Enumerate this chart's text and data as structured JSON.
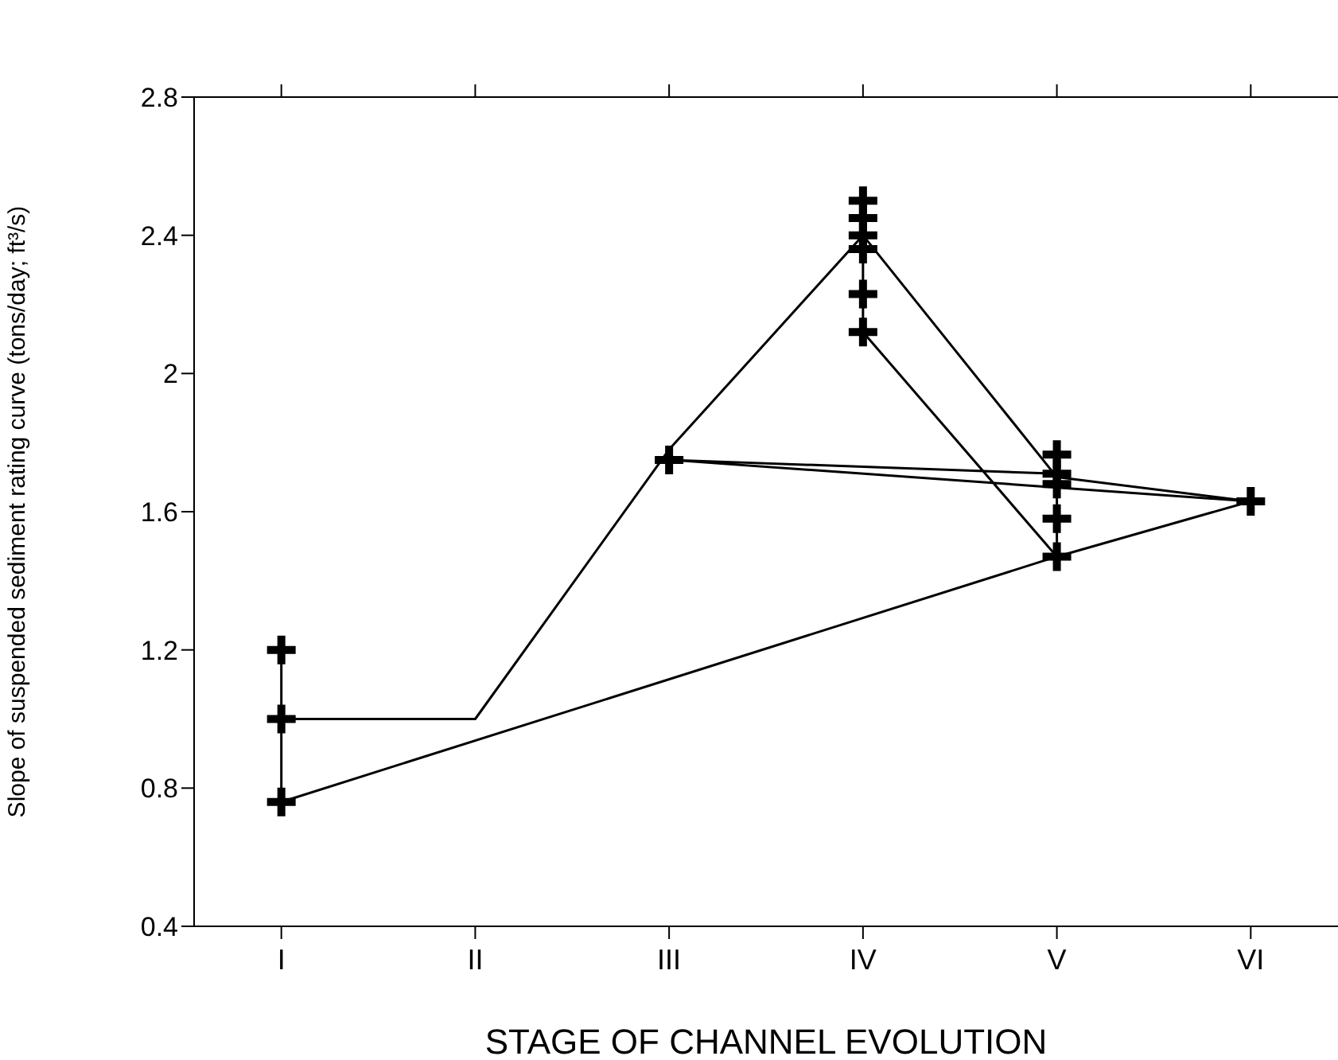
{
  "chart_data": {
    "type": "line",
    "xlabel": "STAGE OF CHANNEL EVOLUTION",
    "ylabel": "Slope of suspended sediment rating curve (tons/day; ft³/s)",
    "categories": [
      "I",
      "II",
      "III",
      "IV",
      "V",
      "VI"
    ],
    "ylim": [
      0.4,
      2.8
    ],
    "yticks": [
      0.4,
      0.8,
      1.2,
      1.6,
      2,
      2.4,
      2.8
    ],
    "series": [
      {
        "type": "scatter",
        "marker": "cross",
        "color": "#000000",
        "x": [
          "I",
          "I",
          "I",
          "III",
          "IV",
          "IV",
          "IV",
          "IV",
          "IV",
          "IV",
          "V",
          "V",
          "V",
          "V",
          "V",
          "VI"
        ],
        "values": [
          1.2,
          1.0,
          0.76,
          1.75,
          2.5,
          2.45,
          2.4,
          2.36,
          2.23,
          2.12,
          1.765,
          1.71,
          1.68,
          1.58,
          1.47,
          1.63
        ]
      },
      {
        "type": "line",
        "marker": "none",
        "color": "#000000",
        "x": [
          "I",
          "I",
          "I",
          "V",
          "VI",
          "III",
          "V",
          "V",
          "V",
          "V",
          "V",
          "IV",
          "IV",
          "IV",
          "IV",
          "IV",
          "IV"
        ],
        "values": [
          1.2,
          1.0,
          0.76,
          1.47,
          1.63,
          1.75,
          1.71,
          1.765,
          1.68,
          1.58,
          1.47,
          2.12,
          2.23,
          2.36,
          2.4,
          2.45,
          2.5
        ]
      },
      {
        "marker": "none",
        "color": "#000000",
        "values": [
          1.0,
          1.0,
          1.78,
          2.4,
          1.7,
          1.63
        ]
      }
    ]
  }
}
